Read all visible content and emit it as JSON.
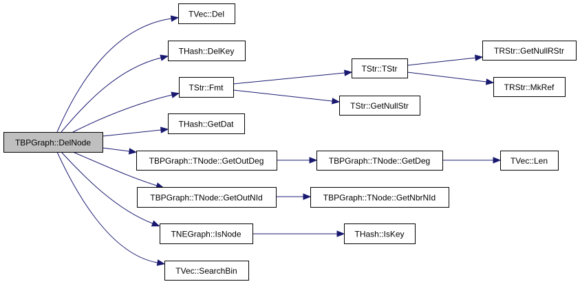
{
  "diagram": {
    "edge_color": "#191970",
    "root_fill": "#bfbfbf",
    "nodes": [
      {
        "id": "delnode",
        "label": "TBPGraph::DelNode",
        "root": true
      },
      {
        "id": "tvec-del",
        "label": "TVec::Del"
      },
      {
        "id": "thash-delkey",
        "label": "THash::DelKey"
      },
      {
        "id": "tstr-fmt",
        "label": "TStr::Fmt"
      },
      {
        "id": "thash-getdat",
        "label": "THash::GetDat"
      },
      {
        "id": "getoutdeg",
        "label": "TBPGraph::TNode::GetOutDeg"
      },
      {
        "id": "getoutnid",
        "label": "TBPGraph::TNode::GetOutNId"
      },
      {
        "id": "isnode",
        "label": "TNEGraph::IsNode"
      },
      {
        "id": "searchbin",
        "label": "TVec::SearchBin"
      },
      {
        "id": "tstr-tstr",
        "label": "TStr::TStr"
      },
      {
        "id": "getnullstr",
        "label": "TStr::GetNullStr"
      },
      {
        "id": "getnullrstr",
        "label": "TRStr::GetNullRStr"
      },
      {
        "id": "mkref",
        "label": "TRStr::MkRef"
      },
      {
        "id": "getdeg",
        "label": "TBPGraph::TNode::GetDeg"
      },
      {
        "id": "tvec-len",
        "label": "TVec::Len"
      },
      {
        "id": "getnbrnid",
        "label": "TBPGraph::TNode::GetNbrNId"
      },
      {
        "id": "iskey",
        "label": "THash::IsKey"
      }
    ],
    "edges": [
      [
        "delnode",
        "tvec-del"
      ],
      [
        "delnode",
        "thash-delkey"
      ],
      [
        "delnode",
        "tstr-fmt"
      ],
      [
        "delnode",
        "thash-getdat"
      ],
      [
        "delnode",
        "getoutdeg"
      ],
      [
        "delnode",
        "getoutnid"
      ],
      [
        "delnode",
        "isnode"
      ],
      [
        "delnode",
        "searchbin"
      ],
      [
        "tstr-fmt",
        "tstr-tstr"
      ],
      [
        "tstr-fmt",
        "getnullstr"
      ],
      [
        "tstr-tstr",
        "getnullrstr"
      ],
      [
        "tstr-tstr",
        "mkref"
      ],
      [
        "getoutdeg",
        "getdeg"
      ],
      [
        "getdeg",
        "tvec-len"
      ],
      [
        "getoutnid",
        "getnbrnid"
      ],
      [
        "isnode",
        "iskey"
      ]
    ]
  }
}
